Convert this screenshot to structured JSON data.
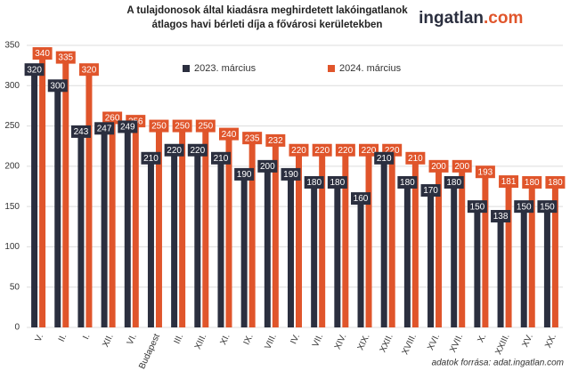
{
  "chart_data": {
    "type": "bar",
    "title": [
      "A tulajdonosok által kiadásra meghirdetett lakóingatlanok",
      "átlagos havi bérleti díja a fővárosi kerületekben"
    ],
    "logo": [
      "ingatlan",
      ".com"
    ],
    "source": "adatok forrása: adat.ingatlan.com",
    "categories": [
      "V.",
      "II.",
      "I.",
      "XII.",
      "VI.",
      "Budapest",
      "III.",
      "XIII.",
      "XI.",
      "IX.",
      "VIII.",
      "IV.",
      "VII.",
      "XIV.",
      "XIX.",
      "XXII.",
      "XVIII.",
      "XVI.",
      "XVII.",
      "X.",
      "XXIII.",
      "XV.",
      "XX."
    ],
    "series": [
      {
        "name": "2023. március",
        "color": "#2b2f3f",
        "values": [
          320,
          300,
          243,
          247,
          249,
          210,
          220,
          220,
          210,
          190,
          200,
          190,
          180,
          180,
          160,
          210,
          180,
          170,
          180,
          150,
          138,
          150,
          150
        ]
      },
      {
        "name": "2024. március",
        "color": "#e0552b",
        "values": [
          340,
          335,
          320,
          260,
          256,
          250,
          250,
          250,
          240,
          235,
          232,
          220,
          220,
          220,
          220,
          220,
          210,
          200,
          200,
          193,
          181,
          180,
          180
        ]
      }
    ],
    "ylim": [
      0,
      350
    ],
    "yticks": [
      0,
      50,
      100,
      150,
      200,
      250,
      300,
      350
    ],
    "grid": true
  }
}
